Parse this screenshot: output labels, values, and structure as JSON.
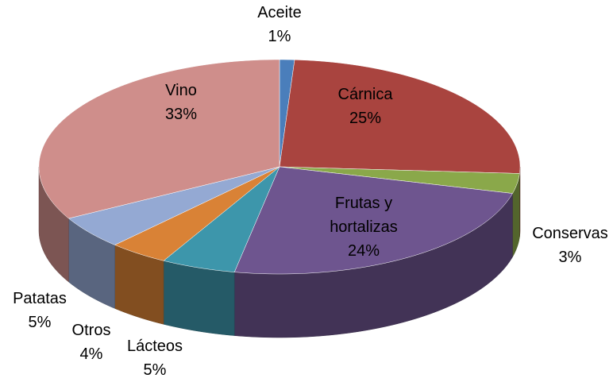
{
  "chart_data": {
    "type": "pie3d",
    "categories": [
      "Aceite",
      "Cárnica",
      "Conservas",
      "Frutas y hortalizas",
      "Lácteos",
      "Otros",
      "Patatas",
      "Vino"
    ],
    "values": [
      1,
      25,
      3,
      24,
      5,
      4,
      5,
      33
    ],
    "value_labels": [
      "1%",
      "25%",
      "3%",
      "24%",
      "5%",
      "4%",
      "5%",
      "33%"
    ],
    "colors": [
      "#4a7ebb",
      "#a9443f",
      "#8aa84a",
      "#6e558f",
      "#3d96ab",
      "#d98236",
      "#94a9d3",
      "#cf8e8b"
    ]
  }
}
